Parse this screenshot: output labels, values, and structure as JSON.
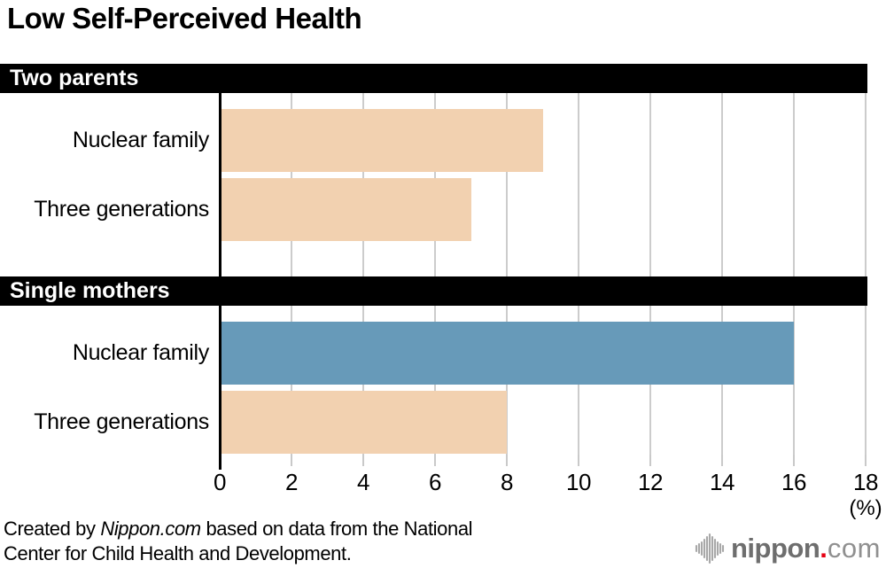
{
  "title": "Low Self-Perceived Health",
  "chart_data": {
    "type": "bar",
    "orientation": "horizontal",
    "title": "Low Self-Perceived Health",
    "axis_unit_label": "(%)",
    "xlim": [
      0,
      18
    ],
    "xticks": [
      0,
      2,
      4,
      6,
      8,
      10,
      12,
      14,
      16,
      18
    ],
    "grid": true,
    "sections": [
      {
        "header": "Two parents",
        "rows": [
          {
            "label": "Nuclear family",
            "value": 9,
            "color": "#f2d1b0"
          },
          {
            "label": "Three generations",
            "value": 7,
            "color": "#f2d1b0"
          }
        ]
      },
      {
        "header": "Single mothers",
        "rows": [
          {
            "label": "Nuclear family",
            "value": 16,
            "color": "#679ab9"
          },
          {
            "label": "Three generations",
            "value": 8,
            "color": "#f2d1b0"
          }
        ]
      }
    ],
    "colors": {
      "bar_default": "#f2d1b0",
      "bar_highlight": "#679ab9",
      "gridline": "#cccccc",
      "axis": "#000000",
      "header_bg": "#000000",
      "header_text": "#ffffff"
    }
  },
  "footer": {
    "credit_prefix": "Created by ",
    "credit_source": "Nippon.com",
    "credit_suffix": " based on data from the National",
    "credit_line2": "Center for Child Health and Development."
  },
  "logo": {
    "icon": "nippon-waveform-icon",
    "brand": "nippon",
    "dot": ".",
    "tld": "com",
    "brand_color": "#6e6e6e",
    "dot_color": "#e60012",
    "tld_color": "#909090",
    "icon_color": "#a8a8a8"
  }
}
